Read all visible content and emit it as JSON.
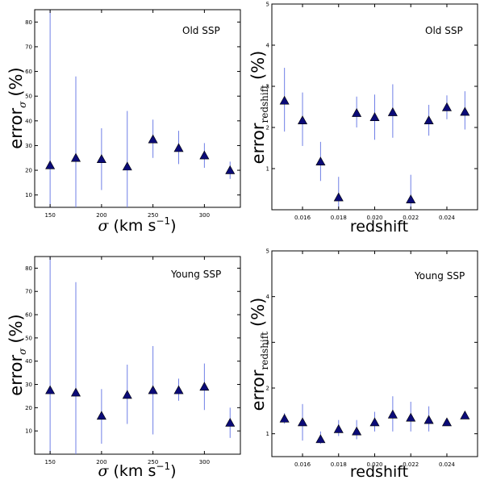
{
  "colors": {
    "errorbar": "#6f7fe6",
    "marker": "#0b0b78"
  },
  "chart_data": [
    {
      "id": "sigma-old",
      "type": "scatter",
      "title": "Old SSP",
      "xlabel": {
        "symbol": "σ",
        "text": "(km s",
        "exp": "−1",
        "close": ")"
      },
      "ylabel": {
        "main": "error",
        "sub": "σ",
        "tail": "(%)"
      },
      "xlim": [
        135,
        335
      ],
      "ylim": [
        5,
        85
      ],
      "xticks": [
        150,
        200,
        250,
        300
      ],
      "xtick_labels": [
        "150",
        "200",
        "250",
        "300"
      ],
      "yticks": [
        10,
        20,
        30,
        40,
        50,
        60,
        70,
        80
      ],
      "ytick_labels": [
        "10",
        "20",
        "30",
        "40",
        "50",
        "60",
        "70",
        "80"
      ],
      "x": [
        150,
        175,
        200,
        225,
        250,
        275,
        300,
        325
      ],
      "y": [
        22,
        25,
        24.5,
        21.5,
        32.5,
        29,
        26,
        20
      ],
      "err_low": [
        5,
        5,
        12,
        5,
        25,
        22.5,
        21,
        16.5
      ],
      "err_high": [
        85,
        58,
        37,
        44,
        40.5,
        36,
        31,
        23.5
      ]
    },
    {
      "id": "redshift-old",
      "type": "scatter",
      "title": "Old SSP",
      "xlabel": {
        "symbol": "",
        "text": "redshift",
        "exp": "",
        "close": ""
      },
      "ylabel": {
        "main": "error",
        "sub": "redshift",
        "tail": "(%)"
      },
      "xlim": [
        0.0143,
        0.0257
      ],
      "ylim": [
        0,
        5
      ],
      "xticks": [
        0.016,
        0.018,
        0.02,
        0.022,
        0.024
      ],
      "xtick_labels": [
        "0.016",
        "0.018",
        "0.020",
        "0.022",
        "0.024"
      ],
      "yticks": [
        1,
        2,
        3,
        4,
        5
      ],
      "ytick_labels": [
        "1",
        "2",
        "3",
        "4",
        "5"
      ],
      "x": [
        0.015,
        0.016,
        0.017,
        0.018,
        0.019,
        0.02,
        0.021,
        0.022,
        0.023,
        0.024,
        0.025
      ],
      "y": [
        2.65,
        2.17,
        1.17,
        0.3,
        2.35,
        2.25,
        2.37,
        0.25,
        2.17,
        2.49,
        2.38
      ],
      "err_low": [
        1.9,
        1.55,
        0.7,
        0,
        2.0,
        1.7,
        1.75,
        0,
        1.8,
        2.2,
        1.95
      ],
      "err_high": [
        3.45,
        2.85,
        1.65,
        0.8,
        2.75,
        2.8,
        3.05,
        0.85,
        2.55,
        2.78,
        2.88
      ]
    },
    {
      "id": "sigma-young",
      "type": "scatter",
      "title": "Young SSP",
      "xlabel": {
        "symbol": "σ",
        "text": "(km s",
        "exp": "−1",
        "close": ")"
      },
      "ylabel": {
        "main": "error",
        "sub": "σ",
        "tail": "(%)"
      },
      "xlim": [
        135,
        335
      ],
      "ylim": [
        0,
        85
      ],
      "xticks": [
        150,
        200,
        250,
        300
      ],
      "xtick_labels": [
        "150",
        "200",
        "250",
        "300"
      ],
      "yticks": [
        10,
        20,
        30,
        40,
        50,
        60,
        70,
        80
      ],
      "ytick_labels": [
        "10",
        "20",
        "30",
        "40",
        "50",
        "60",
        "70",
        "80"
      ],
      "x": [
        150,
        175,
        200,
        225,
        250,
        275,
        300,
        325
      ],
      "y": [
        27.5,
        26.5,
        16.5,
        25.5,
        27.5,
        27.5,
        29,
        13.5
      ],
      "err_low": [
        0,
        0,
        4.5,
        13,
        8.5,
        23,
        19,
        7
      ],
      "err_high": [
        85,
        74,
        28,
        38.5,
        46.5,
        32.5,
        39,
        20
      ]
    },
    {
      "id": "redshift-young",
      "type": "scatter",
      "title": "Young SSP",
      "xlabel": {
        "symbol": "",
        "text": "redshift",
        "exp": "",
        "close": ""
      },
      "ylabel": {
        "main": "error",
        "sub": "redshift",
        "tail": "(%)"
      },
      "xlim": [
        0.0143,
        0.0257
      ],
      "ylim": [
        0.5,
        5
      ],
      "xticks": [
        0.016,
        0.018,
        0.02,
        0.022,
        0.024
      ],
      "xtick_labels": [
        "0.016",
        "0.018",
        "0.020",
        "0.022",
        "0.024"
      ],
      "yticks": [
        1,
        2,
        3,
        4,
        5
      ],
      "ytick_labels": [
        "1",
        "2",
        "3",
        "4",
        "5"
      ],
      "x": [
        0.015,
        0.016,
        0.017,
        0.018,
        0.019,
        0.02,
        0.021,
        0.022,
        0.023,
        0.024,
        0.025
      ],
      "y": [
        1.33,
        1.25,
        0.88,
        1.1,
        1.05,
        1.25,
        1.42,
        1.35,
        1.3,
        1.25,
        1.4
      ],
      "err_low": [
        1.22,
        0.85,
        0.78,
        0.95,
        0.88,
        1.05,
        1.05,
        1.05,
        1.05,
        1.22,
        1.35
      ],
      "err_high": [
        1.45,
        1.65,
        1.05,
        1.3,
        1.3,
        1.48,
        1.82,
        1.7,
        1.6,
        1.3,
        1.45
      ]
    }
  ]
}
